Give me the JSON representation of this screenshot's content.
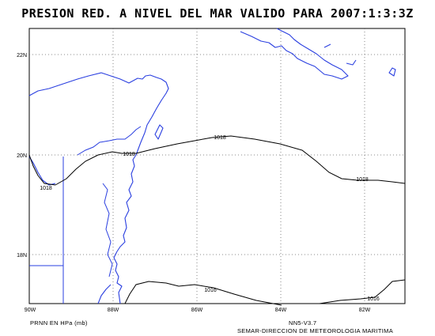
{
  "title": "PRESION RED. A NIVEL DEL MAR VALIDO PARA 2007:1:3:3Z",
  "lat_labels": [
    "22N",
    "20N",
    "18N"
  ],
  "lon_labels": [
    "90W",
    "88W",
    "86W",
    "84W",
    "82W"
  ],
  "contour_labels": [
    "1018",
    "1018",
    "1018",
    "1016",
    "1016"
  ],
  "footer": {
    "units": "PRNN EN HPa (mb)",
    "model": "NN5-V3.7",
    "agency": "SEMAR-DIRECCION DE METEOROLOGIA MARITIMA"
  },
  "colors": {
    "coastline": "#2a3fe0",
    "contour": "#000000",
    "grid": "#666666"
  }
}
